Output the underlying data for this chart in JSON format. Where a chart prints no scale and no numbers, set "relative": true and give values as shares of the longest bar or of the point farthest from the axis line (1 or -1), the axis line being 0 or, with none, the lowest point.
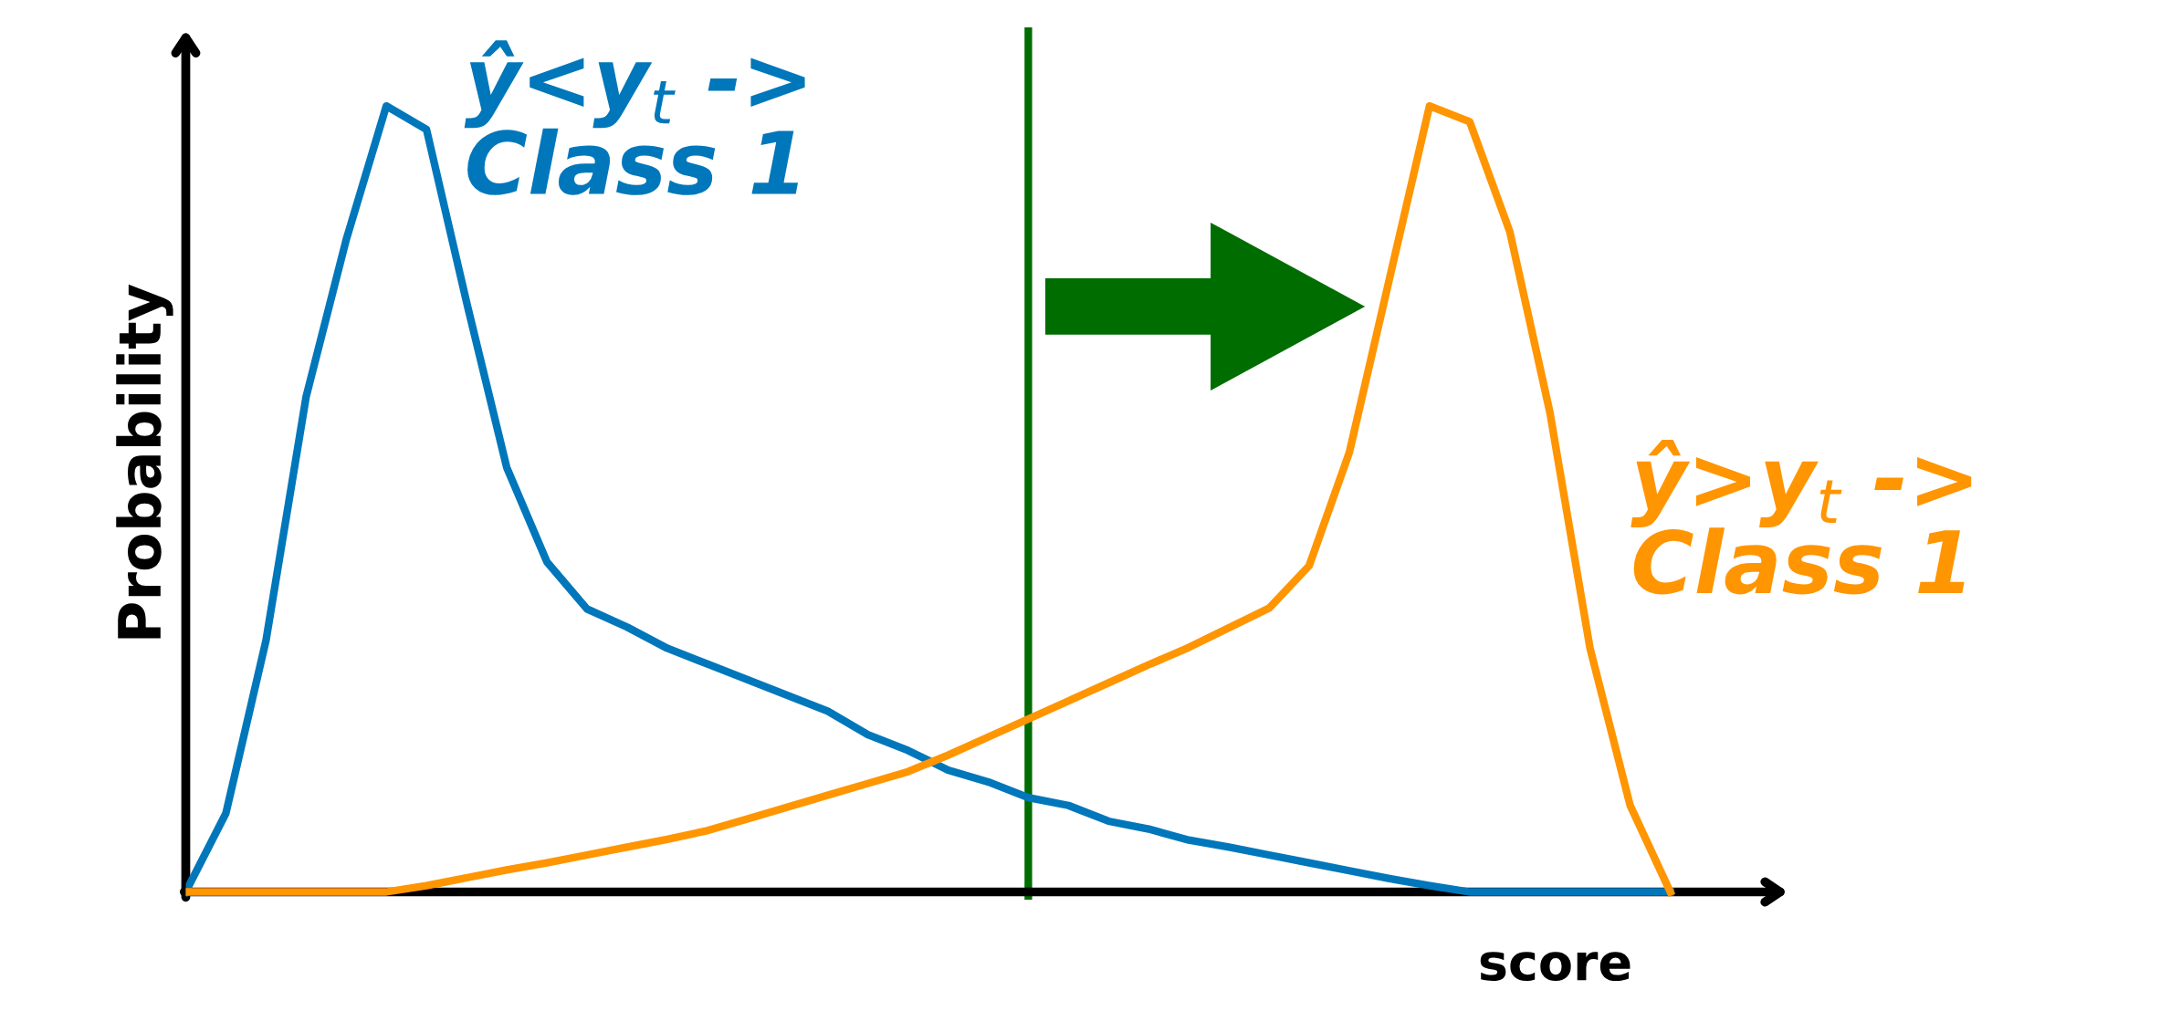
{
  "chart_data": {
    "type": "line",
    "relative": true,
    "xlabel": "score",
    "ylabel": "Probability",
    "grid": false,
    "legend": false,
    "marker": "none",
    "line_style": "solid",
    "categories": [
      null,
      null,
      null,
      null,
      null,
      null,
      null,
      null,
      null,
      null,
      null,
      null,
      null,
      null,
      null,
      null,
      null,
      null,
      null,
      null,
      null,
      null,
      null,
      null,
      null,
      null,
      null,
      null,
      null,
      null,
      null,
      null,
      null,
      null,
      null,
      null,
      null,
      null,
      null,
      null,
      null
    ],
    "series": [
      {
        "color": "#0077bb",
        "values": [
          0,
          0.1,
          0.32,
          0.63,
          0.83,
          1.0,
          0.97,
          0.75,
          0.54,
          0.42,
          0.36,
          0.337,
          0.31,
          0.29,
          0.27,
          0.25,
          0.23,
          0.2,
          0.18,
          0.155,
          0.14,
          0.12,
          0.11,
          0.09,
          0.08,
          0.066,
          0.057,
          0.047,
          0.037,
          0.027,
          0.017,
          0.008,
          0,
          0,
          0,
          0,
          0,
          0,
          null,
          null,
          null
        ]
      },
      {
        "color": "#ff9500",
        "values": [
          0,
          0,
          0,
          0,
          0,
          0,
          0.008,
          0.018,
          0.028,
          0.037,
          0.047,
          0.057,
          0.067,
          0.078,
          0.093,
          0.108,
          0.123,
          0.138,
          0.153,
          0.174,
          0.197,
          0.22,
          0.243,
          0.266,
          0.289,
          0.311,
          0.336,
          0.361,
          0.415,
          0.559,
          0.78,
          1.0,
          0.98,
          0.84,
          0.61,
          0.31,
          0.11,
          0,
          null,
          null,
          null
        ]
      }
    ],
    "annotations": [
      "ŷ<y$_{t}$ ->\nClass 1",
      "ŷ>y$_{t}$ ->\nClass 1"
    ]
  }
}
